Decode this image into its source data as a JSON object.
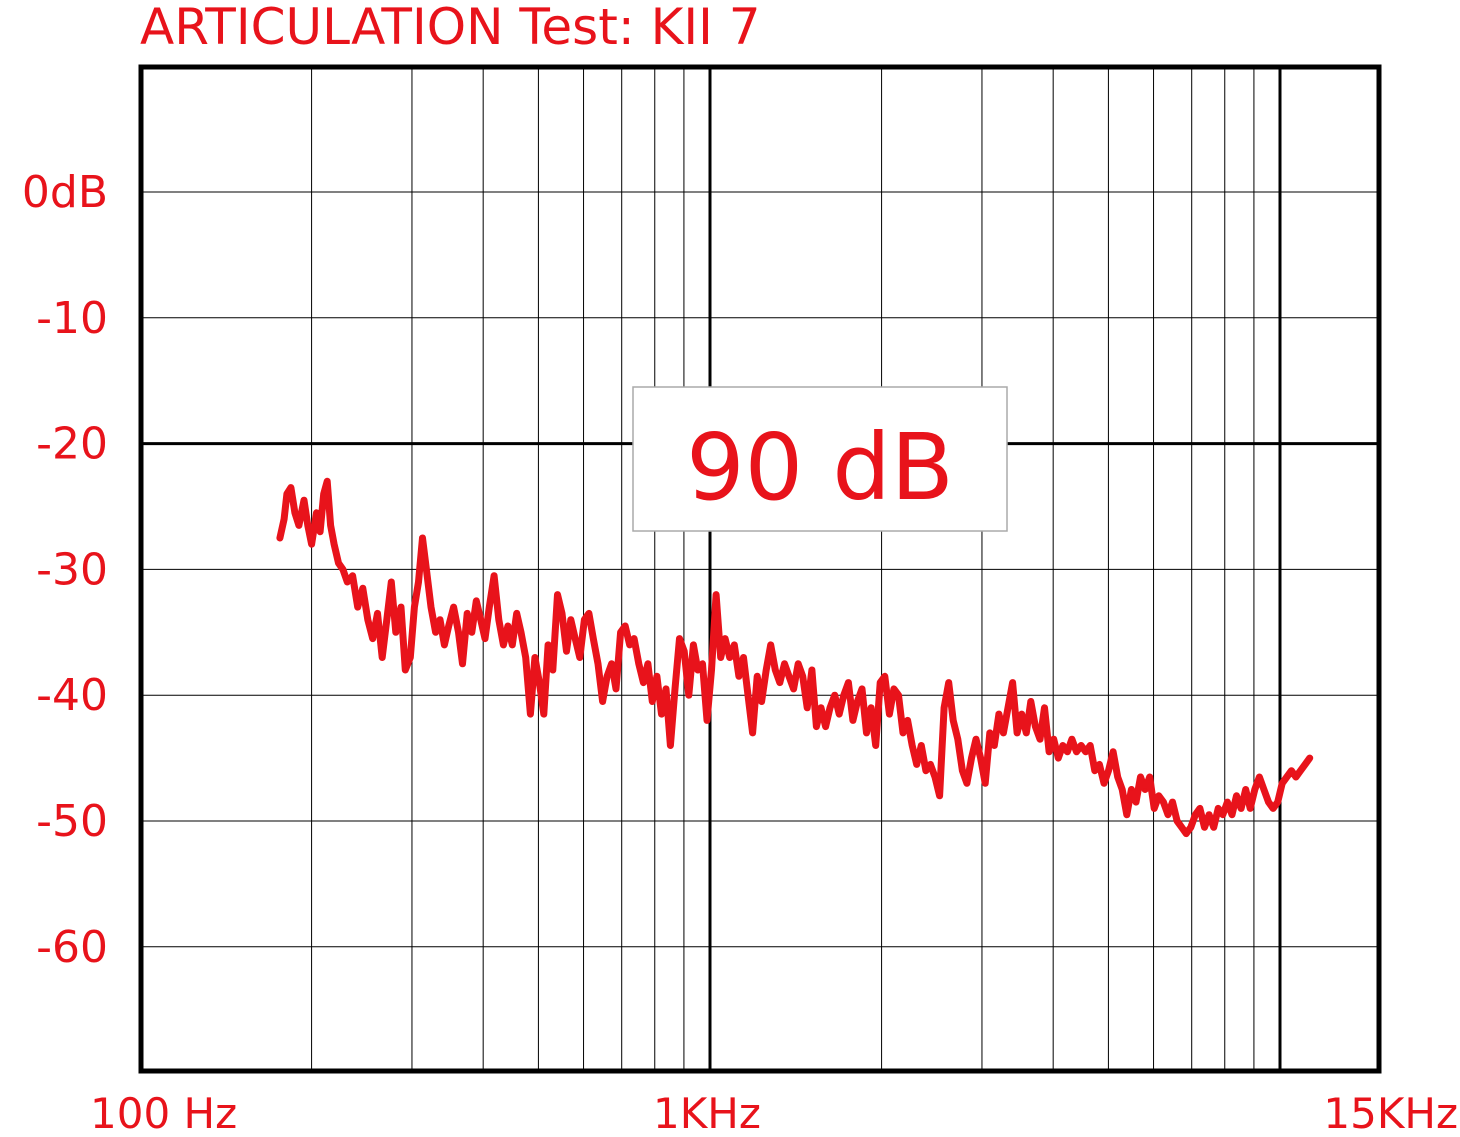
{
  "colors": {
    "accent": "#e8131b",
    "grid": "#000000",
    "background": "#ffffff"
  },
  "chart_data": {
    "type": "line",
    "title": "ARTICULATION Test: KII 7",
    "annotation": "90 dB",
    "x_scale": "log",
    "xlim": [
      100,
      15000
    ],
    "ylim": [
      -70,
      10
    ],
    "grid": true,
    "x_tick_labels": [
      {
        "value": 100,
        "label": "100 Hz"
      },
      {
        "value": 1000,
        "label": "1KHz"
      },
      {
        "value": 15000,
        "label": "15KHz"
      }
    ],
    "y_tick_labels": [
      {
        "value": 0,
        "label": "0dB"
      },
      {
        "value": -10,
        "label": "-10"
      },
      {
        "value": -20,
        "label": "-20"
      },
      {
        "value": -30,
        "label": "-30"
      },
      {
        "value": -40,
        "label": "-40"
      },
      {
        "value": -50,
        "label": "-50"
      },
      {
        "value": -60,
        "label": "-60"
      }
    ],
    "series": [
      {
        "points": [
          [
            176,
            -27.5
          ],
          [
            179,
            -26
          ],
          [
            181,
            -24
          ],
          [
            184,
            -23.5
          ],
          [
            187,
            -25.5
          ],
          [
            190,
            -26.5
          ],
          [
            194,
            -24.5
          ],
          [
            197,
            -26.5
          ],
          [
            200,
            -28
          ],
          [
            204,
            -25.5
          ],
          [
            207,
            -27
          ],
          [
            210,
            -24
          ],
          [
            213,
            -23
          ],
          [
            216,
            -26.5
          ],
          [
            219,
            -28
          ],
          [
            223,
            -29.5
          ],
          [
            227,
            -30
          ],
          [
            231,
            -31
          ],
          [
            236,
            -30.5
          ],
          [
            241,
            -33
          ],
          [
            246,
            -31.5
          ],
          [
            251,
            -34
          ],
          [
            256,
            -35.5
          ],
          [
            261,
            -33.5
          ],
          [
            266,
            -37
          ],
          [
            271,
            -34
          ],
          [
            276,
            -31
          ],
          [
            281,
            -35
          ],
          [
            287,
            -33
          ],
          [
            292,
            -38
          ],
          [
            298,
            -37
          ],
          [
            303,
            -33
          ],
          [
            308,
            -31
          ],
          [
            313,
            -27.5
          ],
          [
            318,
            -30
          ],
          [
            324,
            -33
          ],
          [
            330,
            -35
          ],
          [
            336,
            -34
          ],
          [
            342,
            -36
          ],
          [
            348,
            -34.5
          ],
          [
            355,
            -33
          ],
          [
            362,
            -35
          ],
          [
            368,
            -37.5
          ],
          [
            375,
            -33.5
          ],
          [
            382,
            -35
          ],
          [
            389,
            -32.5
          ],
          [
            396,
            -34
          ],
          [
            403,
            -35.5
          ],
          [
            410,
            -33
          ],
          [
            418,
            -30.5
          ],
          [
            426,
            -34
          ],
          [
            434,
            -36
          ],
          [
            442,
            -34.5
          ],
          [
            450,
            -36
          ],
          [
            458,
            -33.5
          ],
          [
            466,
            -35
          ],
          [
            475,
            -37
          ],
          [
            484,
            -41.5
          ],
          [
            493,
            -37
          ],
          [
            502,
            -39
          ],
          [
            511,
            -41.5
          ],
          [
            520,
            -36
          ],
          [
            530,
            -38
          ],
          [
            540,
            -32
          ],
          [
            550,
            -33.5
          ],
          [
            560,
            -36.5
          ],
          [
            570,
            -34
          ],
          [
            580,
            -35.5
          ],
          [
            591,
            -37
          ],
          [
            602,
            -34
          ],
          [
            613,
            -33.5
          ],
          [
            624,
            -35.5
          ],
          [
            636,
            -37.5
          ],
          [
            648,
            -40.5
          ],
          [
            660,
            -38.5
          ],
          [
            672,
            -37.5
          ],
          [
            684,
            -39.5
          ],
          [
            697,
            -35
          ],
          [
            710,
            -34.5
          ],
          [
            723,
            -36
          ],
          [
            736,
            -35.5
          ],
          [
            750,
            -37.5
          ],
          [
            764,
            -39
          ],
          [
            778,
            -37.5
          ],
          [
            792,
            -40.5
          ],
          [
            807,
            -38.5
          ],
          [
            822,
            -41.5
          ],
          [
            837,
            -39.5
          ],
          [
            852,
            -44
          ],
          [
            868,
            -39.5
          ],
          [
            884,
            -35.5
          ],
          [
            901,
            -36.5
          ],
          [
            918,
            -40
          ],
          [
            935,
            -36
          ],
          [
            952,
            -38
          ],
          [
            970,
            -37.5
          ],
          [
            988,
            -42
          ],
          [
            1006,
            -38
          ],
          [
            1025,
            -32
          ],
          [
            1044,
            -37
          ],
          [
            1063,
            -35.5
          ],
          [
            1083,
            -37
          ],
          [
            1103,
            -36
          ],
          [
            1124,
            -38.5
          ],
          [
            1145,
            -37
          ],
          [
            1166,
            -40
          ],
          [
            1188,
            -43
          ],
          [
            1210,
            -38.5
          ],
          [
            1232,
            -40.5
          ],
          [
            1255,
            -38
          ],
          [
            1278,
            -36
          ],
          [
            1302,
            -38
          ],
          [
            1326,
            -39
          ],
          [
            1351,
            -37.5
          ],
          [
            1376,
            -38.5
          ],
          [
            1402,
            -39.5
          ],
          [
            1428,
            -37.5
          ],
          [
            1454,
            -38.5
          ],
          [
            1481,
            -41
          ],
          [
            1509,
            -38
          ],
          [
            1537,
            -42.5
          ],
          [
            1566,
            -41
          ],
          [
            1595,
            -42.5
          ],
          [
            1624,
            -41
          ],
          [
            1655,
            -40
          ],
          [
            1685,
            -41.5
          ],
          [
            1717,
            -40
          ],
          [
            1749,
            -39
          ],
          [
            1781,
            -42
          ],
          [
            1814,
            -40.5
          ],
          [
            1848,
            -39.5
          ],
          [
            1882,
            -43
          ],
          [
            1917,
            -41
          ],
          [
            1953,
            -44
          ],
          [
            1989,
            -39
          ],
          [
            2026,
            -38.5
          ],
          [
            2064,
            -41.5
          ],
          [
            2102,
            -39.5
          ],
          [
            2141,
            -40
          ],
          [
            2181,
            -43
          ],
          [
            2222,
            -42
          ],
          [
            2263,
            -44
          ],
          [
            2305,
            -45.5
          ],
          [
            2348,
            -44
          ],
          [
            2392,
            -46
          ],
          [
            2436,
            -45.5
          ],
          [
            2482,
            -46.5
          ],
          [
            2528,
            -48
          ],
          [
            2575,
            -41
          ],
          [
            2623,
            -39
          ],
          [
            2671,
            -42
          ],
          [
            2721,
            -43.5
          ],
          [
            2772,
            -46
          ],
          [
            2823,
            -47
          ],
          [
            2876,
            -45
          ],
          [
            2929,
            -43.5
          ],
          [
            2984,
            -45
          ],
          [
            3039,
            -47
          ],
          [
            3096,
            -43
          ],
          [
            3153,
            -44
          ],
          [
            3212,
            -41.5
          ],
          [
            3272,
            -43
          ],
          [
            3333,
            -41
          ],
          [
            3395,
            -39
          ],
          [
            3458,
            -43
          ],
          [
            3522,
            -41.5
          ],
          [
            3588,
            -43
          ],
          [
            3655,
            -40.5
          ],
          [
            3723,
            -42.5
          ],
          [
            3792,
            -43.5
          ],
          [
            3863,
            -41
          ],
          [
            3935,
            -44.5
          ],
          [
            4008,
            -43.5
          ],
          [
            4083,
            -45
          ],
          [
            4159,
            -44
          ],
          [
            4236,
            -44.5
          ],
          [
            4315,
            -43.5
          ],
          [
            4396,
            -44.5
          ],
          [
            4478,
            -44
          ],
          [
            4561,
            -44.5
          ],
          [
            4646,
            -44
          ],
          [
            4733,
            -46
          ],
          [
            4821,
            -45.5
          ],
          [
            4911,
            -47
          ],
          [
            5002,
            -46
          ],
          [
            5096,
            -44.5
          ],
          [
            5191,
            -46.5
          ],
          [
            5287,
            -47.5
          ],
          [
            5386,
            -49.5
          ],
          [
            5486,
            -47.5
          ],
          [
            5589,
            -48.5
          ],
          [
            5693,
            -46.5
          ],
          [
            5799,
            -47.5
          ],
          [
            5907,
            -46.5
          ],
          [
            6017,
            -49
          ],
          [
            6129,
            -48
          ],
          [
            6243,
            -48.5
          ],
          [
            6360,
            -49.5
          ],
          [
            6478,
            -48.5
          ],
          [
            6599,
            -50
          ],
          [
            6722,
            -50.5
          ],
          [
            6847,
            -51
          ],
          [
            6975,
            -50.5
          ],
          [
            7105,
            -49.5
          ],
          [
            7237,
            -49
          ],
          [
            7372,
            -50.5
          ],
          [
            7509,
            -49.5
          ],
          [
            7649,
            -50.5
          ],
          [
            7792,
            -49
          ],
          [
            7937,
            -49.5
          ],
          [
            8085,
            -48.5
          ],
          [
            8236,
            -49.5
          ],
          [
            8389,
            -48
          ],
          [
            8545,
            -49
          ],
          [
            8705,
            -47.5
          ],
          [
            8867,
            -49
          ],
          [
            9032,
            -47.5
          ],
          [
            9200,
            -46.5
          ],
          [
            9372,
            -47.5
          ],
          [
            9547,
            -48.5
          ],
          [
            9725,
            -49
          ],
          [
            9906,
            -48.5
          ],
          [
            10091,
            -47
          ],
          [
            10279,
            -46.5
          ],
          [
            10470,
            -46
          ],
          [
            10665,
            -46.5
          ],
          [
            10864,
            -46
          ],
          [
            11067,
            -45.5
          ],
          [
            11273,
            -45
          ]
        ]
      }
    ]
  }
}
